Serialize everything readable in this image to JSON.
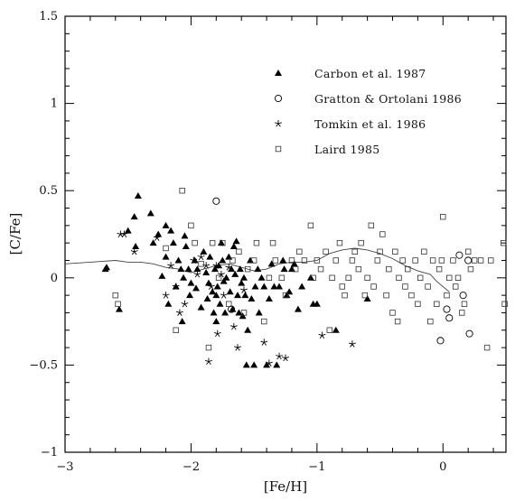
{
  "chart_data": {
    "type": "scatter",
    "title": "",
    "xlabel": "[Fe/H]",
    "ylabel": "[C/Fe]",
    "xlim": [
      -3,
      0.5
    ],
    "ylim": [
      -1,
      1.5
    ],
    "xticks": [
      -3,
      -2,
      -1,
      0
    ],
    "xtick_labels": [
      "−3",
      "−2",
      "−1",
      "0"
    ],
    "yticks": [
      -1,
      -0.5,
      0,
      0.5,
      1,
      1.5
    ],
    "ytick_labels": [
      "−1",
      "−0.5",
      "0",
      "0.5",
      "1",
      "1.5"
    ],
    "grid": false,
    "legend_position": "top-right",
    "series": [
      {
        "name": "Carbon et al. 1987",
        "marker": "filled-triangle",
        "color": "#000000",
        "points": [
          [
            -2.68,
            0.05
          ],
          [
            -2.67,
            0.06
          ],
          [
            -2.57,
            -0.18
          ],
          [
            -2.5,
            0.27
          ],
          [
            -2.45,
            0.35
          ],
          [
            -2.44,
            0.18
          ],
          [
            -2.42,
            0.47
          ],
          [
            -2.32,
            0.37
          ],
          [
            -2.3,
            0.2
          ],
          [
            -2.26,
            0.25
          ],
          [
            -2.23,
            0.01
          ],
          [
            -2.2,
            0.3
          ],
          [
            -2.2,
            0.12
          ],
          [
            -2.18,
            -0.15
          ],
          [
            -2.16,
            0.27
          ],
          [
            -2.14,
            0.2
          ],
          [
            -2.12,
            -0.05
          ],
          [
            -2.1,
            0.1
          ],
          [
            -2.08,
            0.05
          ],
          [
            -2.07,
            -0.25
          ],
          [
            -2.06,
            0.0
          ],
          [
            -2.05,
            0.24
          ],
          [
            -2.04,
            0.18
          ],
          [
            -2.02,
            0.05
          ],
          [
            -2.01,
            -0.1
          ],
          [
            -2.0,
            -0.03
          ],
          [
            -1.97,
            0.1
          ],
          [
            -1.96,
            -0.06
          ],
          [
            -1.95,
            0.05
          ],
          [
            -1.92,
            -0.17
          ],
          [
            -1.9,
            0.15
          ],
          [
            -1.88,
            0.03
          ],
          [
            -1.87,
            -0.12
          ],
          [
            -1.86,
            -0.03
          ],
          [
            -1.85,
            0.12
          ],
          [
            -1.83,
            -0.08
          ],
          [
            -1.82,
            -0.2
          ],
          [
            -1.81,
            0.05
          ],
          [
            -1.8,
            -0.1
          ],
          [
            -1.8,
            -0.25
          ],
          [
            -1.79,
            -0.05
          ],
          [
            -1.78,
            0.07
          ],
          [
            -1.77,
            -0.15
          ],
          [
            -1.76,
            0.2
          ],
          [
            -1.75,
            0.1
          ],
          [
            -1.74,
            -0.02
          ],
          [
            -1.73,
            -0.2
          ],
          [
            -1.72,
            0.0
          ],
          [
            -1.7,
            0.12
          ],
          [
            -1.69,
            -0.08
          ],
          [
            -1.68,
            0.05
          ],
          [
            -1.67,
            -0.18
          ],
          [
            -1.66,
            0.18
          ],
          [
            -1.65,
            0.02
          ],
          [
            -1.64,
            0.21
          ],
          [
            -1.63,
            -0.1
          ],
          [
            -1.62,
            -0.2
          ],
          [
            -1.61,
            0.05
          ],
          [
            -1.6,
            -0.03
          ],
          [
            -1.59,
            -0.22
          ],
          [
            -1.58,
            0.0
          ],
          [
            -1.57,
            -0.1
          ],
          [
            -1.56,
            -0.5
          ],
          [
            -1.55,
            -0.3
          ],
          [
            -1.53,
            0.1
          ],
          [
            -1.52,
            -0.12
          ],
          [
            -1.5,
            -0.5
          ],
          [
            -1.49,
            -0.05
          ],
          [
            -1.47,
            0.05
          ],
          [
            -1.46,
            -0.2
          ],
          [
            -1.44,
            0.0
          ],
          [
            -1.42,
            -0.05
          ],
          [
            -1.4,
            -0.5
          ],
          [
            -1.38,
            -0.12
          ],
          [
            -1.36,
            0.08
          ],
          [
            -1.34,
            -0.05
          ],
          [
            -1.32,
            -0.5
          ],
          [
            -1.3,
            -0.05
          ],
          [
            -1.27,
            0.1
          ],
          [
            -1.26,
            0.05
          ],
          [
            -1.24,
            -0.1
          ],
          [
            -1.22,
            -0.08
          ],
          [
            -1.2,
            0.05
          ],
          [
            -1.18,
            0.08
          ],
          [
            -1.15,
            -0.18
          ],
          [
            -1.12,
            -0.05
          ],
          [
            -1.05,
            0.0
          ],
          [
            -1.03,
            -0.15
          ],
          [
            -1.0,
            -0.15
          ],
          [
            -0.85,
            -0.3
          ],
          [
            -0.6,
            -0.12
          ]
        ]
      },
      {
        "name": "Gratton & Ortolani 1986",
        "marker": "open-circle",
        "color": "#000000",
        "points": [
          [
            -1.8,
            0.44
          ],
          [
            -1.68,
            -0.18
          ],
          [
            -0.02,
            -0.36
          ],
          [
            0.03,
            -0.18
          ],
          [
            0.05,
            -0.23
          ],
          [
            0.13,
            0.13
          ],
          [
            0.16,
            -0.1
          ],
          [
            0.2,
            0.1
          ],
          [
            0.21,
            -0.32
          ]
        ]
      },
      {
        "name": "Tomkin et al. 1986",
        "marker": "star",
        "color": "#000000",
        "points": [
          [
            -2.56,
            0.25
          ],
          [
            -2.53,
            0.25
          ],
          [
            -2.45,
            0.15
          ],
          [
            -2.27,
            0.23
          ],
          [
            -2.2,
            -0.1
          ],
          [
            -2.16,
            0.07
          ],
          [
            -2.12,
            -0.05
          ],
          [
            -2.09,
            -0.2
          ],
          [
            -2.05,
            -0.15
          ],
          [
            -1.98,
            0.1
          ],
          [
            -1.95,
            0.02
          ],
          [
            -1.92,
            0.12
          ],
          [
            -1.88,
            0.07
          ],
          [
            -1.86,
            -0.48
          ],
          [
            -1.84,
            -0.05
          ],
          [
            -1.8,
            0.07
          ],
          [
            -1.79,
            -0.32
          ],
          [
            -1.76,
            0.02
          ],
          [
            -1.74,
            -0.1
          ],
          [
            -1.7,
            0.06
          ],
          [
            -1.66,
            -0.28
          ],
          [
            -1.63,
            -0.4
          ],
          [
            -1.58,
            -0.07
          ],
          [
            -1.42,
            -0.37
          ],
          [
            -1.38,
            -0.49
          ],
          [
            -1.3,
            -0.45
          ],
          [
            -1.25,
            -0.46
          ],
          [
            -0.96,
            -0.33
          ],
          [
            -0.72,
            -0.38
          ]
        ]
      },
      {
        "name": "Laird 1985",
        "marker": "open-square",
        "color": "#000000",
        "points": [
          [
            -2.6,
            -0.1
          ],
          [
            -2.58,
            -0.15
          ],
          [
            -2.2,
            0.17
          ],
          [
            -2.12,
            -0.3
          ],
          [
            -2.07,
            0.5
          ],
          [
            -2.0,
            0.3
          ],
          [
            -1.97,
            0.2
          ],
          [
            -1.92,
            0.08
          ],
          [
            -1.86,
            -0.4
          ],
          [
            -1.83,
            0.2
          ],
          [
            -1.78,
            0.0
          ],
          [
            -1.75,
            0.2
          ],
          [
            -1.7,
            -0.15
          ],
          [
            -1.67,
            0.1
          ],
          [
            -1.62,
            0.15
          ],
          [
            -1.58,
            -0.2
          ],
          [
            -1.55,
            0.05
          ],
          [
            -1.5,
            0.1
          ],
          [
            -1.48,
            0.2
          ],
          [
            -1.42,
            -0.25
          ],
          [
            -1.38,
            0.0
          ],
          [
            -1.35,
            0.2
          ],
          [
            -1.33,
            0.1
          ],
          [
            -1.28,
            0.0
          ],
          [
            -1.25,
            -0.1
          ],
          [
            -1.2,
            0.1
          ],
          [
            -1.17,
            0.05
          ],
          [
            -1.14,
            0.15
          ],
          [
            -1.1,
            0.1
          ],
          [
            -1.05,
            0.3
          ],
          [
            -1.03,
            0.0
          ],
          [
            -1.0,
            0.1
          ],
          [
            -0.97,
            0.05
          ],
          [
            -0.93,
            0.15
          ],
          [
            -0.9,
            -0.3
          ],
          [
            -0.88,
            0.0
          ],
          [
            -0.85,
            0.1
          ],
          [
            -0.82,
            0.2
          ],
          [
            -0.8,
            -0.05
          ],
          [
            -0.78,
            -0.1
          ],
          [
            -0.75,
            0.0
          ],
          [
            -0.72,
            0.1
          ],
          [
            -0.7,
            0.15
          ],
          [
            -0.67,
            0.05
          ],
          [
            -0.65,
            0.2
          ],
          [
            -0.62,
            -0.1
          ],
          [
            -0.6,
            0.0
          ],
          [
            -0.57,
            0.3
          ],
          [
            -0.55,
            -0.05
          ],
          [
            -0.52,
            0.1
          ],
          [
            -0.5,
            0.15
          ],
          [
            -0.48,
            0.25
          ],
          [
            -0.45,
            -0.1
          ],
          [
            -0.43,
            0.05
          ],
          [
            -0.4,
            -0.2
          ],
          [
            -0.38,
            0.15
          ],
          [
            -0.36,
            -0.25
          ],
          [
            -0.35,
            0.0
          ],
          [
            -0.32,
            0.1
          ],
          [
            -0.3,
            -0.05
          ],
          [
            -0.28,
            0.05
          ],
          [
            -0.25,
            -0.1
          ],
          [
            -0.22,
            0.1
          ],
          [
            -0.2,
            -0.15
          ],
          [
            -0.18,
            0.0
          ],
          [
            -0.15,
            0.15
          ],
          [
            -0.12,
            -0.05
          ],
          [
            -0.1,
            -0.25
          ],
          [
            -0.08,
            0.1
          ],
          [
            -0.05,
            -0.15
          ],
          [
            -0.03,
            0.05
          ],
          [
            -0.01,
            0.1
          ],
          [
            0.0,
            0.35
          ],
          [
            0.03,
            -0.1
          ],
          [
            0.05,
            0.0
          ],
          [
            0.08,
            0.1
          ],
          [
            0.1,
            -0.05
          ],
          [
            0.12,
            0.0
          ],
          [
            0.15,
            -0.2
          ],
          [
            0.17,
            -0.15
          ],
          [
            0.2,
            0.15
          ],
          [
            0.22,
            0.05
          ],
          [
            0.25,
            0.1
          ],
          [
            0.3,
            0.1
          ],
          [
            0.35,
            -0.4
          ],
          [
            0.38,
            0.1
          ],
          [
            0.48,
            0.2
          ],
          [
            0.49,
            -0.15
          ]
        ]
      }
    ],
    "curve": {
      "style": "thin-solid-line",
      "points": [
        [
          -3.0,
          0.08
        ],
        [
          -2.8,
          0.09
        ],
        [
          -2.6,
          0.1
        ],
        [
          -2.5,
          0.09
        ],
        [
          -2.4,
          0.09
        ],
        [
          -2.3,
          0.08
        ],
        [
          -2.2,
          0.06
        ],
        [
          -2.1,
          0.05
        ],
        [
          -2.0,
          0.03
        ],
        [
          -1.9,
          0.05
        ],
        [
          -1.8,
          0.07
        ],
        [
          -1.7,
          0.08
        ],
        [
          -1.6,
          0.06
        ],
        [
          -1.5,
          0.04
        ],
        [
          -1.4,
          0.05
        ],
        [
          -1.3,
          0.08
        ],
        [
          -1.2,
          0.09
        ],
        [
          -1.1,
          0.09
        ],
        [
          -1.0,
          0.1
        ],
        [
          -0.9,
          0.14
        ],
        [
          -0.8,
          0.16
        ],
        [
          -0.7,
          0.17
        ],
        [
          -0.6,
          0.16
        ],
        [
          -0.5,
          0.14
        ],
        [
          -0.4,
          0.11
        ],
        [
          -0.3,
          0.07
        ],
        [
          -0.2,
          0.04
        ],
        [
          -0.1,
          0.02
        ],
        [
          -0.05,
          -0.02
        ],
        [
          0.0,
          -0.05
        ],
        [
          0.05,
          -0.08
        ]
      ]
    }
  }
}
